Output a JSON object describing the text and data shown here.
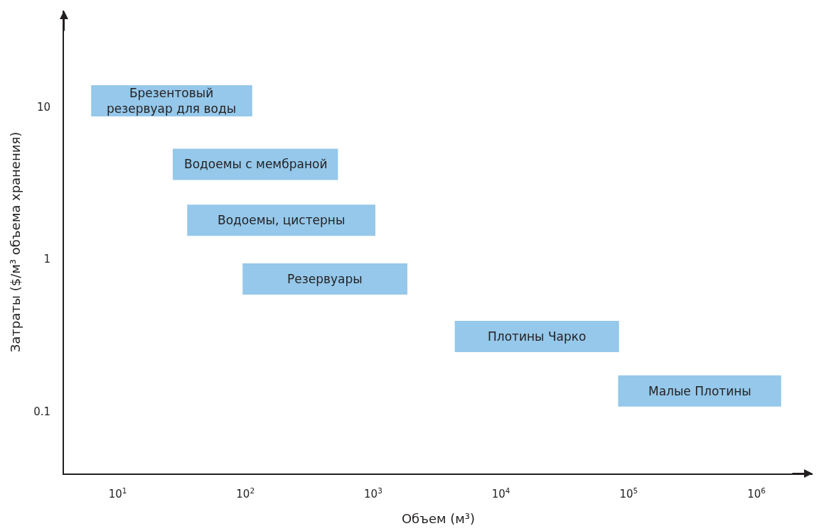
{
  "chart_data": {
    "type": "line",
    "log": "xy",
    "xlabel": "Объем (м³)",
    "ylabel": "Затраты ($/м³ объема хранения)",
    "xlim": [
      3.8,
      2750000
    ],
    "ylim": [
      0.039,
      43
    ],
    "xticks": [
      {
        "value": 10,
        "label": "10$^{1}$"
      },
      {
        "value": 100,
        "label": "10$^{2}$"
      },
      {
        "value": 1000,
        "label": "10$^{3}$"
      },
      {
        "value": 10000,
        "label": "10$^{4}$"
      },
      {
        "value": 100000,
        "label": "10$^{5}$"
      },
      {
        "value": 1000000,
        "label": "10$^{6}$"
      }
    ],
    "yticks": [
      0.1,
      1,
      10
    ],
    "marker": "none",
    "line_style": "solid",
    "series": [
      {
        "name": "Брезентовый\nрезервуар для воды",
        "color": "#95c8ea",
        "x": [
          6.2,
          113
        ],
        "values": [
          11,
          11
        ]
      },
      {
        "name": "Водоемы с мембраной",
        "color": "#95c8ea",
        "x": [
          27,
          530
        ],
        "values": [
          4.2,
          4.2
        ]
      },
      {
        "name": "Водоемы, цистерны",
        "color": "#95c8ea",
        "x": [
          35,
          1040
        ],
        "values": [
          1.8,
          1.8
        ]
      },
      {
        "name": "Резервуары",
        "color": "#95c8ea",
        "x": [
          95,
          1850
        ],
        "values": [
          0.74,
          0.74
        ]
      },
      {
        "name": "Плотины Чарко",
        "color": "#95c8ea",
        "x": [
          4350,
          84000
        ],
        "values": [
          0.31,
          0.31
        ]
      },
      {
        "name": "Малые Плотины",
        "color": "#95c8ea",
        "x": [
          82600,
          1560000
        ],
        "values": [
          0.136,
          0.136
        ]
      }
    ]
  }
}
